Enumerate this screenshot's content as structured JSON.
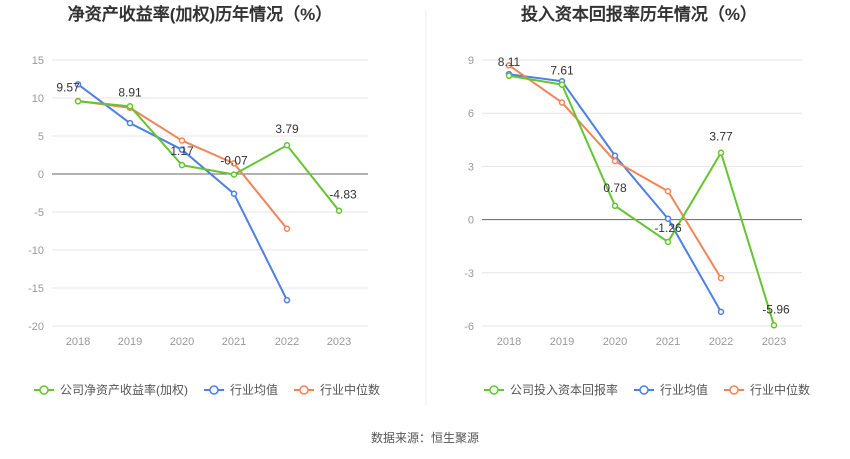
{
  "source": "数据来源：恒生聚源",
  "chart_data": [
    {
      "type": "line",
      "title": "净资产收益率(加权)历年情况（%）",
      "categories": [
        "2018",
        "2019",
        "2020",
        "2021",
        "2022",
        "2023"
      ],
      "ylim": [
        -20,
        15
      ],
      "yticks": [
        "15",
        "10",
        "5",
        "0",
        "-5",
        "-10",
        "-15",
        "-20"
      ],
      "grid": true,
      "legend_position": "bottom-left",
      "series": [
        {
          "name": "公司净资产收益率(加权)",
          "color": "#66c431",
          "values": [
            9.57,
            8.91,
            1.17,
            -0.07,
            3.79,
            -4.83
          ],
          "labels": [
            "9.57",
            "8.91",
            "1.17",
            "-0.07",
            "3.79",
            "-4.83"
          ]
        },
        {
          "name": "行业均值",
          "color": "#4e7fe3",
          "values": [
            11.8,
            6.7,
            3.2,
            -2.6,
            -16.6,
            null
          ]
        },
        {
          "name": "行业中位数",
          "color": "#f0855a",
          "values": [
            9.6,
            8.7,
            4.4,
            1.4,
            -7.2,
            null
          ]
        }
      ]
    },
    {
      "type": "line",
      "title": "投入资本回报率历年情况（%）",
      "categories": [
        "2018",
        "2019",
        "2020",
        "2021",
        "2022",
        "2023"
      ],
      "ylim": [
        -6,
        9
      ],
      "yticks": [
        "9",
        "6",
        "3",
        "0",
        "-3",
        "-6"
      ],
      "grid": true,
      "legend_position": "bottom-left",
      "series": [
        {
          "name": "公司投入资本回报率",
          "color": "#66c431",
          "values": [
            8.11,
            7.61,
            0.78,
            -1.26,
            3.77,
            -5.96
          ],
          "labels": [
            "8.11",
            "7.61",
            "0.78",
            "-1.26",
            "3.77",
            "-5.96"
          ]
        },
        {
          "name": "行业均值",
          "color": "#4e7fe3",
          "values": [
            8.2,
            7.8,
            3.6,
            0.05,
            -5.2,
            null
          ]
        },
        {
          "name": "行业中位数",
          "color": "#f0855a",
          "values": [
            8.7,
            6.6,
            3.3,
            1.6,
            -3.3,
            null
          ]
        }
      ]
    }
  ]
}
